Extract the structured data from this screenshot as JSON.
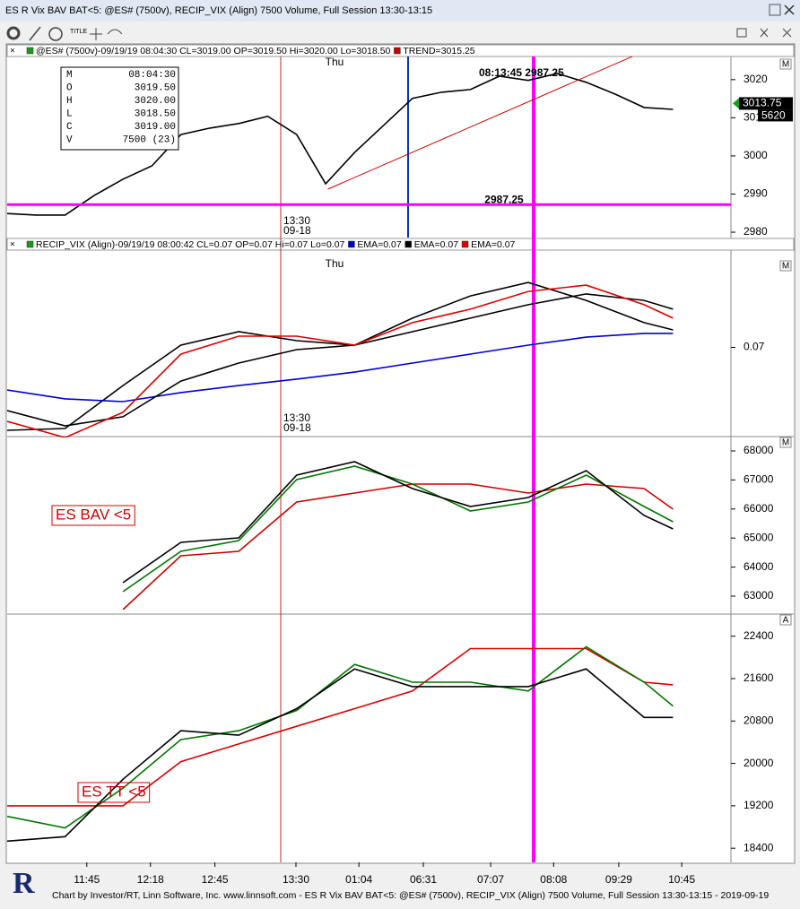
{
  "window": {
    "title": "ES R Vix BAV BAT<5: @ES# (7500v), RECIP_VIX (Align) 7500 Volume, Full Session 13:30-13:15"
  },
  "toolbar": {
    "title_icon": "TITLE"
  },
  "footer": {
    "text": "Chart by Investor/RT, Linn Software, Inc. www.linnsoft.com - ES R Vix BAV BAT<5: @ES# (7500v), RECIP_VIX (Align) 7500 Volume, Full Session 13:30-13:15 - 2019-09-19",
    "logo": "R"
  },
  "time_axis": {
    "xlim": [
      0,
      100
    ],
    "xticks": [
      {
        "value": 11,
        "label": "11:45"
      },
      {
        "value": 19.8,
        "label": "12:18"
      },
      {
        "value": 28.7,
        "label": "12:45"
      },
      {
        "value": 39.9,
        "label": "13:30"
      },
      {
        "value": 48.6,
        "label": "01:04"
      },
      {
        "value": 57.5,
        "label": "06:31"
      },
      {
        "value": 66.8,
        "label": "07:07"
      },
      {
        "value": 75.5,
        "label": "08:08"
      },
      {
        "value": 84.5,
        "label": "09:29"
      },
      {
        "value": 93.2,
        "label": "10:45"
      }
    ]
  },
  "chart_data": [
    {
      "type": "line",
      "corner_label": "M",
      "day_label": "Thu",
      "session_label": [
        "13:30",
        "09-18"
      ],
      "ylim": [
        2978.6,
        3025.6
      ],
      "yticks": [
        2980,
        2990,
        3000,
        3010,
        3020
      ],
      "x": [
        0,
        4,
        8,
        12,
        16,
        20,
        24,
        28,
        32,
        36,
        40,
        44,
        48,
        52,
        56,
        60,
        64,
        68,
        72,
        76,
        80,
        84,
        88,
        92
      ],
      "series": [
        {
          "name": "@ES# (7500v)-09/19/19 08:04:30 CL=3019.00 OP=3019.50 Hi=3020.00 Lo=3018.50",
          "color": "#000000",
          "values": [
            2984.9,
            2984.5,
            2984.5,
            2989.6,
            2993.9,
            2997.4,
            3005.6,
            3007.3,
            3008.5,
            3010.4,
            3005.6,
            2992.7,
            3000.9,
            3008.0,
            3015.1,
            3016.7,
            3017.4,
            3020.9,
            3019.8,
            3021.6,
            3019.3,
            3016.2,
            3012.7,
            3012.2
          ]
        },
        {
          "name": "TREND=3015.25",
          "color": "#cc0000",
          "x": [
            44.3,
            86.4
          ],
          "values": [
            2991.3,
            3026.1
          ]
        }
      ],
      "hline": 2987.25,
      "cursor_text": "08:13:45 2987.25",
      "last_price": 3013.75,
      "last_volume": 5620,
      "info_box": [
        [
          "M",
          "08:04:30"
        ],
        [
          "O",
          "3019.50"
        ],
        [
          "H",
          "3020.00"
        ],
        [
          "L",
          "3018.50"
        ],
        [
          "C",
          "3019.00"
        ],
        [
          "V",
          "7500 (23)"
        ]
      ]
    },
    {
      "type": "line",
      "corner_label": "M",
      "day_label": "Thu",
      "session_label": [
        "13:30",
        "09-18"
      ],
      "ylim": [
        0.0665,
        0.0735
      ],
      "yticks": [
        0.07
      ],
      "x": [
        0,
        8,
        16,
        24,
        32,
        40,
        48,
        56,
        64,
        72,
        80,
        88,
        92
      ],
      "series": [
        {
          "name": "RECIP_VIX (Align)-09/19/19 08:00:42 CL=0.07 OP=0.07 Hi=0.07 Lo=0.07",
          "color": "#000000",
          "values": [
            0.06668,
            0.06675,
            0.06847,
            0.07009,
            0.07063,
            0.07027,
            0.07009,
            0.07117,
            0.07206,
            0.0726,
            0.07188,
            0.07099,
            0.0707
          ]
        },
        {
          "name": "EMA=0.07",
          "color": "#0000cc",
          "values": [
            0.06829,
            0.06794,
            0.06783,
            0.06819,
            0.06847,
            0.06873,
            0.06901,
            0.06937,
            0.06973,
            0.07009,
            0.07041,
            0.07056,
            0.07056
          ]
        },
        {
          "name": "EMA=0.07",
          "color": "#000000",
          "values": [
            0.06747,
            0.06686,
            0.06722,
            0.06865,
            0.06937,
            0.06991,
            0.07009,
            0.07063,
            0.07117,
            0.07171,
            0.07214,
            0.07188,
            0.07153
          ]
        },
        {
          "name": "EMA=0.07",
          "color": "#e00000",
          "values": [
            0.06704,
            0.06639,
            0.0674,
            0.06973,
            0.07045,
            0.07045,
            0.07009,
            0.07099,
            0.07153,
            0.07224,
            0.07249,
            0.07171,
            0.07117
          ]
        }
      ]
    },
    {
      "type": "line",
      "corner_label": "M",
      "annotation": "ES BAV <5",
      "ylim": [
        62537,
        68401
      ],
      "yticks": [
        63000,
        64000,
        65000,
        66000,
        67000,
        68000
      ],
      "x": [
        0,
        8,
        16,
        24,
        32,
        40,
        48,
        56,
        64,
        72,
        80,
        88,
        92
      ],
      "series": [
        {
          "color": "#cc0000",
          "values": [
            null,
            null,
            62537,
            64389,
            64543,
            66241,
            66549,
            66858,
            66858,
            66549,
            66858,
            66704,
            65994
          ]
        },
        {
          "color": "#007700",
          "values": [
            null,
            null,
            63154,
            64543,
            64914,
            67012,
            67475,
            66858,
            65932,
            66241,
            67167,
            66086,
            65562
          ]
        },
        {
          "color": "#000000",
          "values": [
            null,
            null,
            63463,
            64852,
            65006,
            67167,
            67630,
            66704,
            66086,
            66395,
            67321,
            65778,
            65315
          ]
        }
      ]
    },
    {
      "type": "line",
      "corner_label": "A",
      "annotation": "ES TT <5",
      "ylim": [
        18200,
        22767
      ],
      "yticks": [
        18400,
        19200,
        20000,
        20800,
        21600,
        22400
      ],
      "x": [
        0,
        8,
        16,
        24,
        32,
        40,
        48,
        56,
        64,
        72,
        80,
        88,
        92
      ],
      "series": [
        {
          "color": "#dd0000",
          "values": [
            19200,
            19200,
            19200,
            20033,
            20367,
            20700,
            21033,
            21367,
            22167,
            22167,
            22167,
            21533,
            21483
          ]
        },
        {
          "color": "#007700",
          "values": [
            19000,
            18783,
            19533,
            20450,
            20617,
            21000,
            21867,
            21533,
            21533,
            21367,
            22200,
            21533,
            21083
          ]
        },
        {
          "color": "#000000",
          "values": [
            18533,
            18617,
            19700,
            20617,
            20533,
            21033,
            21783,
            21450,
            21450,
            21450,
            21783,
            20867,
            20867
          ]
        }
      ]
    }
  ]
}
